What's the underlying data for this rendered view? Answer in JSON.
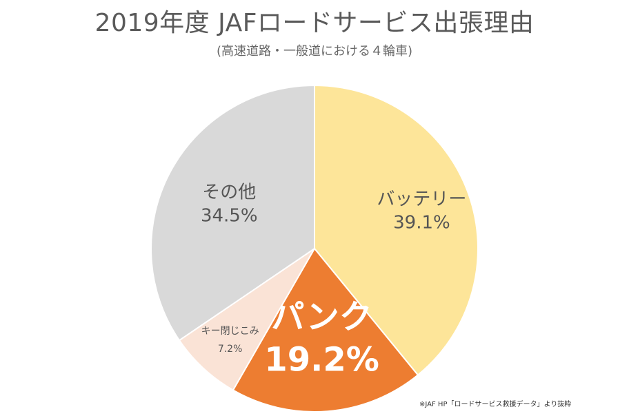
{
  "header": {
    "title": "2019年度 JAFロードサービス出張理由",
    "subtitle": "(高速道路・一般道における４輪車)"
  },
  "chart_data": {
    "type": "pie",
    "title": "2019年度 JAFロードサービス出張理由",
    "subtitle": "(高速道路・一般道における４輪車)",
    "slices": [
      {
        "label": "バッテリー",
        "value": 39.1,
        "display": "39.1%",
        "color": "#fde599"
      },
      {
        "label": "パンク",
        "value": 19.2,
        "display": "19.2%",
        "color": "#ed7d31"
      },
      {
        "label": "キー閉じこみ",
        "value": 7.2,
        "display": "7.2%",
        "color": "#fae3d6"
      },
      {
        "label": "その他",
        "value": 34.5,
        "display": "34.5%",
        "color": "#d9d9d9"
      }
    ]
  },
  "footer": {
    "source": "※JAF HP「ロードサービス救援データ」より抜粋"
  }
}
